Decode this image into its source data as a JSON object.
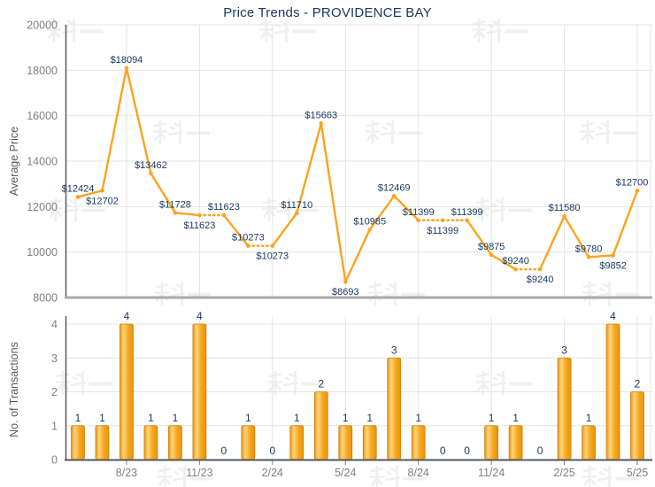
{
  "title": "Price Trends - PROVIDENCE BAY",
  "watermark_text": "科一",
  "colors": {
    "line": "#FBA41E",
    "bar_border": "#C97F06",
    "bar_grad_edge": "#EC950D",
    "bar_grad_light": "#FFD47E",
    "bar_grad_mid": "#F6A81F",
    "label": "#17375E",
    "axis_text": "#808080",
    "axis_title_text": "#595959",
    "grid": "#E4E4E4",
    "axis_line": "#4D5566",
    "left_axis_line": "#595959",
    "divider": "#A9A9A9",
    "watermark": "#EFEFEF",
    "background": "#FFFFFF"
  },
  "chart_data": [
    {
      "type": "line",
      "name": "average-price-trend",
      "title": "Price Trends - PROVIDENCE BAY",
      "ylabel": "Average Price",
      "ylim": [
        8000,
        20000
      ],
      "yticks": [
        8000,
        10000,
        12000,
        14000,
        16000,
        18000,
        20000
      ],
      "grid": true,
      "x": [
        "6/23",
        "7/23",
        "8/23",
        "9/23",
        "10/23",
        "11/23",
        "12/23",
        "1/24",
        "2/24",
        "3/24",
        "4/24",
        "5/24",
        "6/24",
        "7/24",
        "8/24",
        "9/24",
        "10/24",
        "11/24",
        "12/24",
        "1/25",
        "2/25",
        "3/25",
        "4/25",
        "5/25"
      ],
      "xtick_labels": [
        "8/23",
        "11/23",
        "2/24",
        "5/24",
        "8/24",
        "11/24",
        "2/25",
        "5/25"
      ],
      "values": [
        12424,
        12702,
        18094,
        13462,
        11728,
        11623,
        11623,
        10273,
        10273,
        11710,
        15663,
        8693,
        10985,
        12469,
        11399,
        11399,
        11399,
        9875,
        9240,
        9240,
        11580,
        9780,
        9852,
        12700
      ],
      "point_labels": [
        "$12424",
        "$12702",
        "$18094",
        "$13462",
        "$11728",
        "$11623",
        "$11623",
        "$10273",
        "$10273",
        "$11710",
        "$15663",
        "$8693",
        "$10985",
        "$12469",
        "$11399",
        "$11399",
        "$11399",
        "$9875",
        "$9240",
        "$9240",
        "$11580",
        "$9780",
        "$9852",
        "$12700"
      ],
      "label_side": [
        "above",
        "below",
        "above",
        "above",
        "above",
        "below",
        "above",
        "above",
        "below",
        "above",
        "above",
        "below",
        "above",
        "above",
        "above",
        "below",
        "above",
        "above",
        "above",
        "below",
        "above",
        "above",
        "below",
        "above"
      ],
      "note": "segments leading into a zero-transaction month are drawn dotted (price carried forward)"
    },
    {
      "type": "bar",
      "name": "transaction-count",
      "ylabel": "No. of Transactions",
      "ylim": [
        0,
        4
      ],
      "yticks": [
        0,
        1,
        2,
        3,
        4
      ],
      "grid": true,
      "categories": [
        "6/23",
        "7/23",
        "8/23",
        "9/23",
        "10/23",
        "11/23",
        "12/23",
        "1/24",
        "2/24",
        "3/24",
        "4/24",
        "5/24",
        "6/24",
        "7/24",
        "8/24",
        "9/24",
        "10/24",
        "11/24",
        "12/24",
        "1/25",
        "2/25",
        "3/25",
        "4/25",
        "5/25"
      ],
      "xtick_labels": [
        "8/23",
        "11/23",
        "2/24",
        "5/24",
        "8/24",
        "11/24",
        "2/25",
        "5/25"
      ],
      "values": [
        1,
        1,
        4,
        1,
        1,
        4,
        0,
        1,
        0,
        1,
        2,
        1,
        1,
        3,
        1,
        0,
        0,
        1,
        1,
        0,
        3,
        1,
        4,
        2
      ]
    }
  ]
}
